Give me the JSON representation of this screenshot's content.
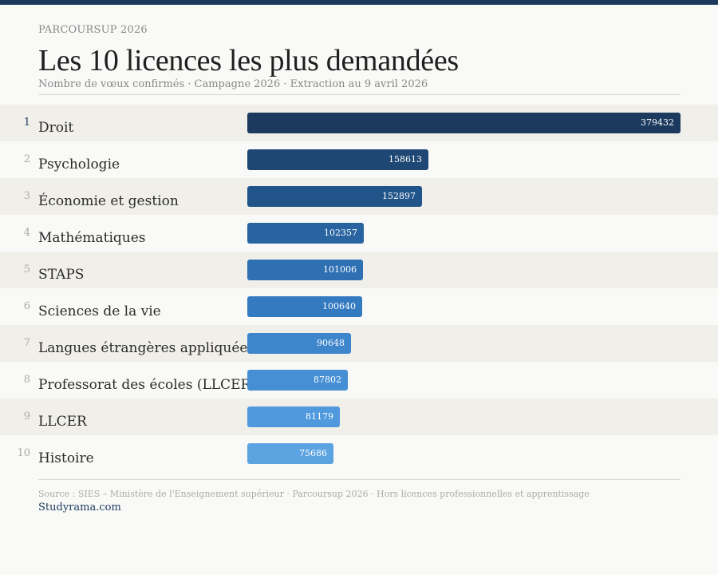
{
  "header": {
    "eyebrow": "PARCOURSUP 2026",
    "title": "Les 10 licences les plus demandées",
    "subtitle": "Nombre de vœux confirmés · Campagne 2026 · Extraction au 9 avril 2026"
  },
  "footer": {
    "source": "Source : SIES – Ministère de l'Enseignement supérieur · Parcoursup 2026 · Hors licences professionnelles et apprentissage",
    "brand": "Studyrama.com"
  },
  "chart_data": {
    "type": "bar",
    "orientation": "horizontal",
    "title": "Les 10 licences les plus demandées",
    "subtitle": "Nombre de vœux confirmés · Campagne 2026 · Extraction au 9 avril 2026",
    "ranks": [
      "1",
      "2",
      "3",
      "4",
      "5",
      "6",
      "7",
      "8",
      "9",
      "10"
    ],
    "categories": [
      "Droit",
      "Psychologie",
      "Économie et gestion",
      "Mathématiques",
      "STAPS",
      "Sciences de la vie",
      "Langues étrangères appliquées",
      "Professorat des écoles (LLCER)",
      "LLCER",
      "Histoire"
    ],
    "values": [
      379432,
      158613,
      152897,
      102357,
      101006,
      100640,
      90648,
      87802,
      81179,
      75686
    ],
    "value_labels": [
      "379432",
      "158613",
      "152897",
      "102357",
      "101006",
      "100640",
      "90648",
      "87802",
      "81179",
      "75686"
    ],
    "xlim": [
      0,
      379432
    ],
    "grid": false,
    "legend": "none",
    "colors": [
      "#1b3a5e",
      "#1e4774",
      "#21558a",
      "#2964a0",
      "#2f70b3",
      "#347ac0",
      "#3d86cc",
      "#468fd5",
      "#4f99dc",
      "#5ca3e2"
    ]
  }
}
